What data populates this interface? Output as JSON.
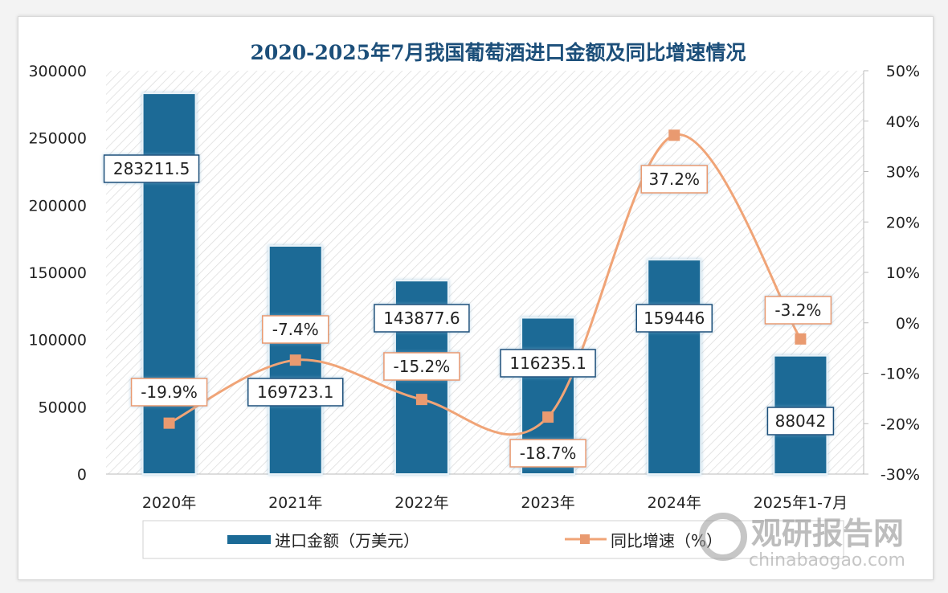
{
  "chart_data": {
    "type": "bar+line",
    "title": "2020-2025年7月我国葡萄酒进口金额及同比增速情况",
    "categories": [
      "2020年",
      "2021年",
      "2022年",
      "2023年",
      "2024年",
      "2025年1-7月"
    ],
    "series": [
      {
        "name": "进口金额（万美元）",
        "type": "bar",
        "axis": "left",
        "values": [
          283211.5,
          169723.1,
          143877.6,
          116235.1,
          159446,
          88042
        ],
        "labels": [
          "283211.5",
          "169723.1",
          "143877.6",
          "116235.1",
          "159446",
          "88042"
        ]
      },
      {
        "name": "同比增速（%）",
        "type": "line",
        "axis": "right",
        "values": [
          -19.9,
          -7.4,
          -15.2,
          -18.7,
          37.2,
          -3.2
        ],
        "labels": [
          "-19.9%",
          "-7.4%",
          "-15.2%",
          "-18.7%",
          "37.2%",
          "-3.2%"
        ]
      }
    ],
    "y_left": {
      "ylim": [
        0,
        300000
      ],
      "ticks": [
        "0",
        "50000",
        "100000",
        "150000",
        "200000",
        "250000",
        "300000"
      ]
    },
    "y_right": {
      "ylim": [
        -30,
        50
      ],
      "ticks": [
        "-30%",
        "-20%",
        "-10%",
        "0%",
        "10%",
        "20%",
        "30%",
        "40%",
        "50%"
      ]
    },
    "legend_position": "bottom",
    "colors": {
      "bar": "#1b6a96",
      "line": "#f0a477",
      "marker": "#e99a70",
      "title": "#1c4f7a"
    }
  },
  "watermark": {
    "brand": "观研报告网",
    "site": "chinabaogao.com"
  }
}
